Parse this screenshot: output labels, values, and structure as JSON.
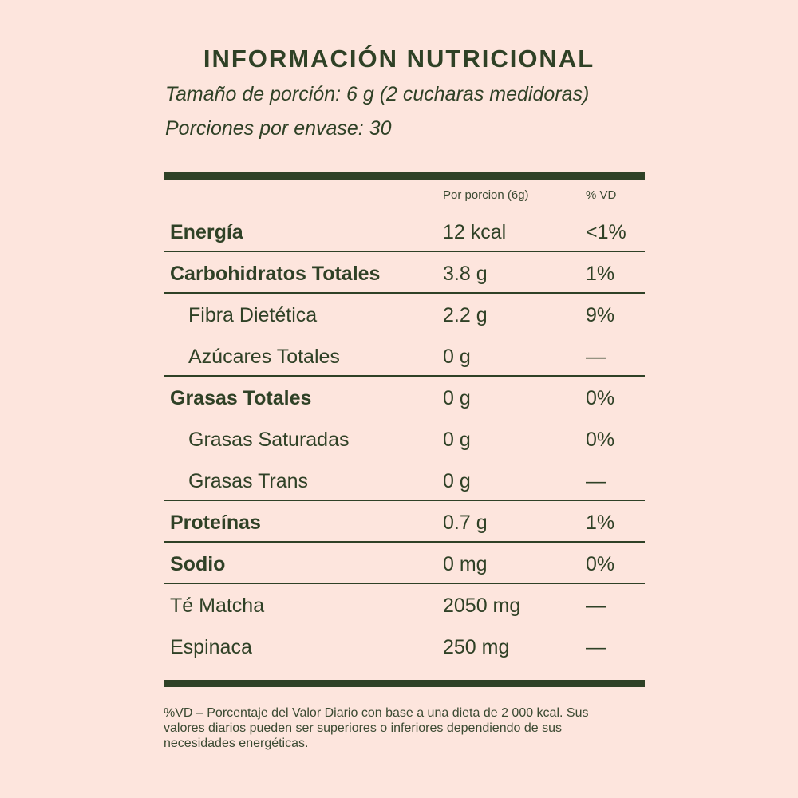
{
  "header": {
    "title": "INFORMACIÓN NUTRICIONAL",
    "serving_size": "Tamaño de porción: 6 g (2 cucharas medidoras)",
    "servings_per_container": "Porciones por envase: 30"
  },
  "columns": {
    "portion": "Por porcion (6g)",
    "dv": "% VD"
  },
  "rows": [
    {
      "name": "Energía",
      "amount": "12 kcal",
      "dv": "<1%"
    },
    {
      "name": "Carbohidratos Totales",
      "amount": "3.8 g",
      "dv": "1%"
    },
    {
      "name": "Fibra Dietética",
      "amount": "2.2 g",
      "dv": "9%"
    },
    {
      "name": "Azúcares Totales",
      "amount": "0 g",
      "dv": "—"
    },
    {
      "name": "Grasas Totales",
      "amount": "0 g",
      "dv": "0%"
    },
    {
      "name": "Grasas Saturadas",
      "amount": "0 g",
      "dv": "0%"
    },
    {
      "name": "Grasas Trans",
      "amount": "0 g",
      "dv": "—"
    },
    {
      "name": "Proteínas",
      "amount": "0.7 g",
      "dv": "1%"
    },
    {
      "name": "Sodio",
      "amount": "0 mg",
      "dv": "0%"
    },
    {
      "name": "Té Matcha",
      "amount": "2050 mg",
      "dv": "—"
    },
    {
      "name": "Espinaca",
      "amount": "250 mg",
      "dv": "—"
    }
  ],
  "footnote": "%VD – Porcentaje del Valor Diario con base a una dieta de 2 000 kcal. Sus valores diarios pueden ser superiores o inferiores dependiendo de sus necesidades energéticas.",
  "colors": {
    "background": "#fde5dd",
    "ink": "#2f4126"
  }
}
